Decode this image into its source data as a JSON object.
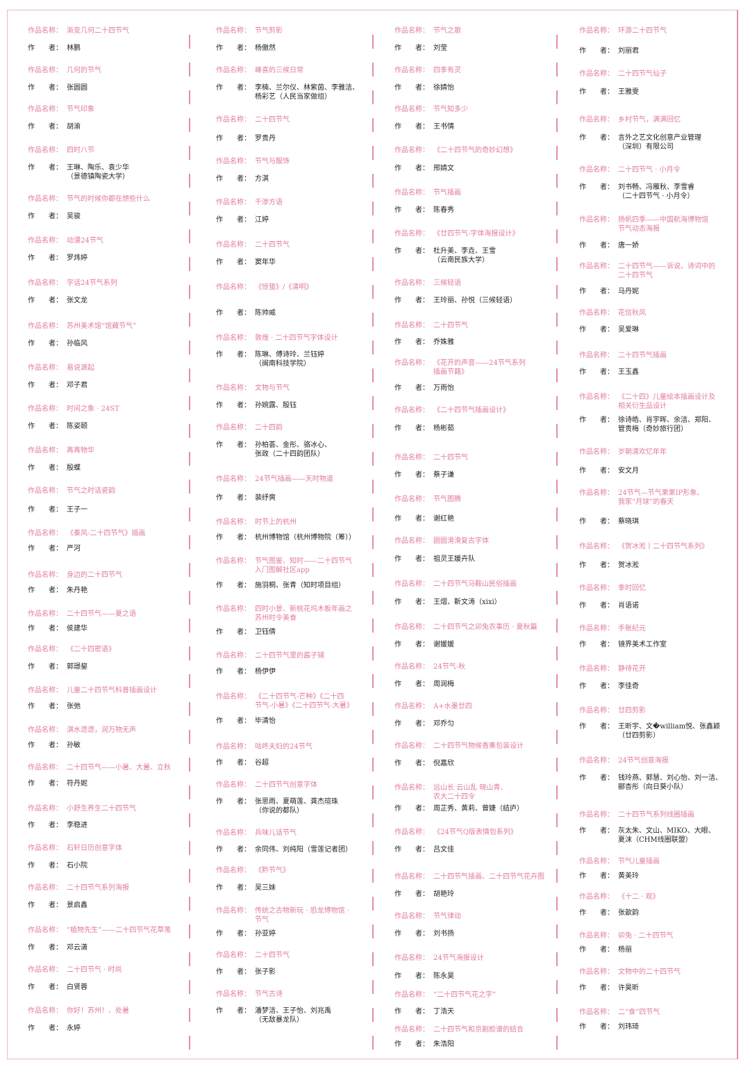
{
  "labels": {
    "title": "作品名称：",
    "author": "作　　者："
  },
  "colors": {
    "title": "#e07aa0",
    "author": "#222222",
    "separator": "#e58ab0"
  },
  "columns": [
    [
      {
        "title": [
          "渐变几何二十四节气"
        ],
        "author": [
          "林鹏"
        ]
      },
      {
        "title": [
          "几何的节气"
        ],
        "author": [
          "张圆圆"
        ]
      },
      {
        "title": [
          "节气印象"
        ],
        "author": [
          "胡渝"
        ]
      },
      {
        "title": [
          "四时八节"
        ],
        "author": [
          "王琳、陶乐、袁少华",
          "（景德镇陶瓷大学）"
        ]
      },
      {
        "title": [
          "节气的时候你都在想些什么"
        ],
        "author": [
          "吴骏"
        ]
      },
      {
        "title": [
          "动漫24节气"
        ],
        "author": [
          "罗炜婷"
        ]
      },
      {
        "title": [
          "字话24节气系列"
        ],
        "author": [
          "张文龙"
        ]
      },
      {
        "title": [
          "苏州美术馆“馆藏节气”"
        ],
        "author": [
          "孙临风"
        ]
      },
      {
        "title": [
          "易说源起"
        ],
        "author": [
          "邓子君"
        ]
      },
      {
        "title": [
          "时间之象 · 24ST"
        ],
        "author": [
          "陈姿颐"
        ]
      },
      {
        "title": [
          "苒苒物华"
        ],
        "author": [
          "殷蝶"
        ]
      },
      {
        "title": [
          "节气之时话瓷韵"
        ],
        "author": [
          "王子一"
        ]
      },
      {
        "title": [
          "《秦风-二十四节气》插画"
        ],
        "author": [
          "严河"
        ]
      },
      {
        "title": [
          "身边的二十四节气"
        ],
        "author": [
          "朱丹艳"
        ]
      },
      {
        "title": [
          "二十四节气——夏之语"
        ],
        "author": [
          "侯建华"
        ]
      },
      {
        "title": [
          "《二十四密语》"
        ],
        "author": [
          "郭璟鋆"
        ]
      },
      {
        "title": [
          "儿童二十四节气科普插画设计"
        ],
        "author": [
          "张弛"
        ]
      },
      {
        "title": [
          "淇水滺滺，润万物无声"
        ],
        "author": [
          "孙敏"
        ]
      },
      {
        "title": [
          "二十四节气——小暑、大暑、立秋"
        ],
        "author": [
          "符丹妮"
        ]
      },
      {
        "title": [
          "小舒生养生二十四节气"
        ],
        "author": [
          "李稳进"
        ]
      },
      {
        "title": [
          "石轩日历创意字体"
        ],
        "author": [
          "石小院"
        ]
      },
      {
        "title": [
          "二十四节气系列海报"
        ],
        "author": [
          "景启鑫"
        ]
      },
      {
        "title": [
          "“植物先生”——二十四节气花草笺"
        ],
        "author": [
          "邓云潇"
        ]
      },
      {
        "title": [
          "二十四节气 · 时尚"
        ],
        "author": [
          "白贤蓉"
        ]
      },
      {
        "title": [
          "你好！苏州！、处暑"
        ],
        "author": [
          "永婷"
        ]
      }
    ],
    [
      {
        "title": [
          "节气剪影"
        ],
        "author": [
          "杨傲然"
        ]
      },
      {
        "title": [
          "峰喜的三候日常"
        ],
        "author": [
          "李楠、兰尔仪、林紫茵、李雅洁、",
          "杨彩艺（人民当家做组）"
        ]
      },
      {
        "title": [
          "二十四节气"
        ],
        "author": [
          "罗贵丹"
        ]
      },
      {
        "title": [
          "节气与服饰"
        ],
        "author": [
          "方淇"
        ]
      },
      {
        "title": [
          "千渗方语"
        ],
        "author": [
          "江婷"
        ]
      },
      {
        "title": [
          "二十四节气"
        ],
        "author": [
          "窦年华"
        ]
      },
      {
        "title": [
          "《惊蛰》/《清明》"
        ],
        "author": [
          "陈帅威"
        ]
      },
      {
        "title": [
          "敦煌 · 二十四节气字体设计"
        ],
        "author": [
          "陈琳、傅诗玲、兰钰婷",
          "（闽南科技学院）"
        ]
      },
      {
        "title": [
          "文物与节气"
        ],
        "author": [
          "孙婉露、殷钰"
        ]
      },
      {
        "title": [
          "二十四韵"
        ],
        "author": [
          "孙柏荟、金彤、骆冰心、",
          "张政（二十四韵团队）"
        ]
      },
      {
        "title": [
          "24节气插画——天时物道"
        ],
        "author": [
          "裴纾爽"
        ]
      },
      {
        "title": [
          "时节上的杭州"
        ],
        "author": [
          "杭州博物馆（杭州博物院（筹））"
        ]
      },
      {
        "title": [
          "节气图鉴、知时——二十四节气",
          "入门图解社区app"
        ],
        "author": [
          "施羽桐、张青（知时项目组）"
        ]
      },
      {
        "title": [
          "四时小景、新桃花坞木板年画之",
          "苏州时令美食"
        ],
        "author": [
          "卫钰倩"
        ]
      },
      {
        "title": [
          "二十四节气里的酱子铺"
        ],
        "author": [
          "杨伊伊"
        ]
      },
      {
        "title": [
          "《二十四节气-芒种》《二十四",
          "节气-小暑》《二十四节气-大暑》"
        ],
        "author": [
          "毕清怡"
        ]
      },
      {
        "title": [
          "咕咚夫妇的24节气"
        ],
        "author": [
          "谷超"
        ]
      },
      {
        "title": [
          "二十四节气创意字体"
        ],
        "author": [
          "张思雨、夏萌莲、龚杰瑄珠",
          "（你说的都队）"
        ]
      },
      {
        "title": [
          "兵味儿话节气"
        ],
        "author": [
          "余同伟、刘纯阳（雪莲记者团）"
        ]
      },
      {
        "title": [
          "《黔节气》"
        ],
        "author": [
          "吴三妹"
        ]
      },
      {
        "title": [
          "传统之古物新玩 · 恐龙博物馆 ·",
          "节气"
        ],
        "author": [
          "孙亚婷"
        ]
      },
      {
        "title": [
          "二十四节气"
        ],
        "author": [
          "张子影"
        ]
      },
      {
        "title": [
          "节气古诗"
        ],
        "author": [
          "潘梦洁、王子怡、刘兆禹",
          "（无敌暴龙队）"
        ]
      }
    ],
    [
      {
        "title": [
          "节气之歌"
        ],
        "author": [
          "刘莹"
        ]
      },
      {
        "title": [
          "四季有灵"
        ],
        "author": [
          "徐婧怡"
        ]
      },
      {
        "title": [
          "节气知多少"
        ],
        "author": [
          "王书情"
        ]
      },
      {
        "title": [
          "《二十四节气的奇妙幻想》"
        ],
        "author": [
          "邢婧文"
        ]
      },
      {
        "title": [
          "节气插画"
        ],
        "author": [
          "陈春秀"
        ]
      },
      {
        "title": [
          "《廿四节气-字体海报设计》"
        ],
        "author": [
          "杜升美、李垚、王雪",
          "（云南民族大学）"
        ]
      },
      {
        "title": [
          "三候轻语"
        ],
        "author": [
          "王玲丽、孙悦（三候轻语）"
        ]
      },
      {
        "title": [
          "二十四节气"
        ],
        "author": [
          "乔姝雅"
        ]
      },
      {
        "title": [
          "《花开的声音——24节气系列",
          "插画节籍》"
        ],
        "author": [
          "万雨怡"
        ]
      },
      {
        "title": [
          "《二十四节气插画设计》"
        ],
        "author": [
          "杨彬茹"
        ]
      },
      {
        "title": [
          "二十四节气"
        ],
        "author": [
          "蔡子谦"
        ]
      },
      {
        "title": [
          "节气图腾"
        ],
        "author": [
          "谢红艳"
        ]
      },
      {
        "title": [
          "圆圆滑滑复古字体"
        ],
        "author": [
          "祖灵王媛卉队"
        ]
      },
      {
        "title": [
          "二十四节气马鞍山民俗插画"
        ],
        "author": [
          "王熠、靳文涛（xixi）"
        ]
      },
      {
        "title": [
          "二十四节气之卯兔农事历 · 夏秋篇"
        ],
        "author": [
          "谢媛媛"
        ]
      },
      {
        "title": [
          "24节气-秋"
        ],
        "author": [
          "周润梅"
        ]
      },
      {
        "title": [
          "A+水墨廿四"
        ],
        "author": [
          "邓乔匀"
        ]
      },
      {
        "title": [
          "二十四节气物候香薰包装设计"
        ],
        "author": [
          "倪嘉欣"
        ]
      },
      {
        "title": [
          "远山长 云山乱 晓山青、",
          "农大二十四令"
        ],
        "author": [
          "周芷秀、黄莉、曾婕（结庐）"
        ]
      },
      {
        "title": [
          "《24节气Q版表情包系列》"
        ],
        "author": [
          "吕文佳"
        ]
      },
      {
        "title": [
          "二十四节气插画、二十四节气花卉图"
        ],
        "author": [
          "胡艳玲"
        ]
      },
      {
        "title": [
          "节气律动"
        ],
        "author": [
          "刘书扬"
        ]
      },
      {
        "title": [
          "24节气海报设计"
        ],
        "author": [
          "陈永昊"
        ]
      },
      {
        "title": [
          "“二十四节气花之字”"
        ],
        "author": [
          "丁浩天"
        ]
      },
      {
        "title": [
          "二十四节气和京剧脸谱的结合"
        ],
        "author": [
          "朱浩阳"
        ]
      }
    ],
    [
      {
        "title": [
          "环游二十四节气"
        ],
        "author": [
          "刘丽君"
        ]
      },
      {
        "title": [
          "二十四节气仙子"
        ],
        "author": [
          "王雅雯"
        ]
      },
      {
        "title": [
          "乡村节气，满满回忆"
        ],
        "author": [
          "言外之艺文化创意产业管理",
          "（深圳）有限公司"
        ]
      },
      {
        "title": [
          "二十四节气 · 小月令"
        ],
        "author": [
          "刘书畅、冯雁秋、李雪睿",
          "（二十四节气 · 小月令）"
        ]
      },
      {
        "title": [
          "扬帆四季——中国航海博物馆",
          "节气动态海报"
        ],
        "author": [
          "唐一娇"
        ]
      },
      {
        "title": [
          "二十四节气——诉说、诗词中的",
          "二十四节气"
        ],
        "author": [
          "马丹妮"
        ]
      },
      {
        "title": [
          "花信秋风"
        ],
        "author": [
          "吴爱琳"
        ]
      },
      {
        "title": [
          "二十四节气插画"
        ],
        "author": [
          "王玉鑫"
        ]
      },
      {
        "title": [
          "《二十四》儿童绘本插画设计及",
          "相关衍生品设计"
        ],
        "author": [
          "徐诗皓、肖宇晖、余洁、郑阳、",
          "管贵梅（奇妙旅行团）"
        ]
      },
      {
        "title": [
          "岁朝清欢忆年年"
        ],
        "author": [
          "安文月"
        ]
      },
      {
        "title": [
          "24节气—节气果果IP形象、",
          "我家“月球”的春天"
        ],
        "author": [
          "蔡晓琪"
        ]
      },
      {
        "title": [
          "《贺冰淞丨二十四节气系列》"
        ],
        "author": [
          "贺冰淞"
        ]
      },
      {
        "title": [
          "季时回忆"
        ],
        "author": [
          "肖语诺"
        ]
      },
      {
        "title": [
          "手账纪元"
        ],
        "author": [
          "镜界美术工作室"
        ]
      },
      {
        "title": [
          "静待花开"
        ],
        "author": [
          "李佳奇"
        ]
      },
      {
        "title": [
          "廿四剪影"
        ],
        "author": [
          "王昕宇、文�william悦、张鑫颖",
          "（廿四剪影）"
        ]
      },
      {
        "title": [
          "24节气创意海报"
        ],
        "author": [
          "钱玲燕、郭慧、刘心怡、刘一洁、",
          "郦杏彤（向日葵小队）"
        ]
      },
      {
        "title": [
          "二十四节气系列线圈插画"
        ],
        "author": [
          "灰太朱、文山、MIKO、大眼、",
          "夏沫（CHM线圈联盟）"
        ]
      },
      {
        "title": [
          "节气儿童插画"
        ],
        "author": [
          "黄美玲"
        ]
      },
      {
        "title": [
          "《十二 · 观》"
        ],
        "author": [
          "张歆韵"
        ]
      },
      {
        "title": [
          "卯兔 · 二十四节气"
        ],
        "author": [
          "杨丽"
        ]
      },
      {
        "title": [
          "文物中的二十四节气"
        ],
        "author": [
          "许昊昕"
        ]
      },
      {
        "title": [
          "二“食”四节气"
        ],
        "author": [
          "刘玮琦"
        ]
      }
    ]
  ]
}
